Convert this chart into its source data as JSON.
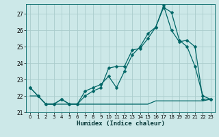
{
  "xlabel": "Humidex (Indice chaleur)",
  "bg_color": "#cce8e8",
  "grid_color": "#aacccc",
  "line_color": "#006666",
  "xlim": [
    -0.5,
    23.5
  ],
  "ylim": [
    21.0,
    27.6
  ],
  "yticks": [
    21,
    22,
    23,
    24,
    25,
    26,
    27
  ],
  "xticks": [
    0,
    1,
    2,
    3,
    4,
    5,
    6,
    7,
    8,
    9,
    10,
    11,
    12,
    13,
    14,
    15,
    16,
    17,
    18,
    19,
    20,
    21,
    22,
    23
  ],
  "series1_x": [
    0,
    1,
    2,
    3,
    4,
    5,
    6,
    7,
    8,
    9,
    10,
    11,
    12,
    13,
    14,
    15,
    16,
    17,
    18,
    19,
    20,
    21,
    22,
    23
  ],
  "series1_y": [
    22.5,
    22.0,
    21.5,
    21.5,
    21.8,
    21.5,
    21.5,
    22.0,
    22.3,
    22.5,
    23.7,
    23.8,
    23.8,
    24.8,
    24.9,
    25.5,
    26.2,
    27.4,
    27.1,
    25.4,
    25.0,
    23.8,
    22.0,
    21.8
  ],
  "series2_x": [
    0,
    1,
    2,
    3,
    4,
    5,
    6,
    7,
    8,
    9,
    10,
    11,
    12,
    13,
    14,
    15,
    16,
    17,
    18,
    19,
    20,
    21,
    22,
    23
  ],
  "series2_y": [
    22.5,
    22.0,
    21.5,
    21.5,
    21.8,
    21.5,
    21.5,
    22.3,
    22.5,
    22.7,
    23.2,
    22.5,
    23.5,
    24.5,
    25.0,
    25.8,
    26.2,
    27.5,
    26.0,
    25.3,
    25.4,
    25.0,
    21.8,
    21.8
  ],
  "series3_x": [
    0,
    1,
    2,
    3,
    4,
    5,
    6,
    7,
    8,
    9,
    10,
    11,
    12,
    13,
    14,
    15,
    16,
    17,
    18,
    19,
    20,
    21,
    22,
    23
  ],
  "series3_y": [
    22.0,
    22.0,
    21.5,
    21.5,
    21.5,
    21.5,
    21.5,
    21.5,
    21.5,
    21.5,
    21.5,
    21.5,
    21.5,
    21.5,
    21.5,
    21.5,
    21.7,
    21.7,
    21.7,
    21.7,
    21.7,
    21.7,
    21.7,
    21.8
  ]
}
